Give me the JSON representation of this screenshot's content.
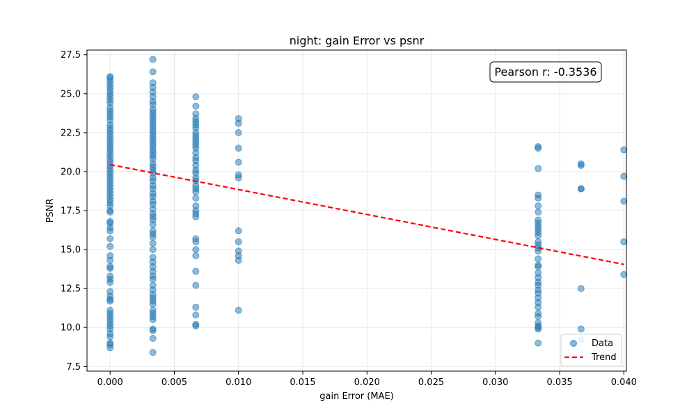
{
  "chart_data": {
    "type": "scatter",
    "title": "night: gain Error vs psnr",
    "xlabel": "gain Error (MAE)",
    "ylabel": "PSNR",
    "xlim": [
      -0.0018,
      0.0402
    ],
    "ylim": [
      7.2,
      27.8
    ],
    "x_ticks": [
      "0.000",
      "0.005",
      "0.010",
      "0.015",
      "0.020",
      "0.025",
      "0.030",
      "0.035",
      "0.040"
    ],
    "y_ticks": [
      "7.5",
      "10.0",
      "12.5",
      "15.0",
      "17.5",
      "20.0",
      "22.5",
      "25.0",
      "27.5"
    ],
    "grid": true,
    "legend_position": "lower-right",
    "annotation": "Pearson r: -0.3536",
    "colors": {
      "data": "#1f77b4",
      "trend": "#ff0000"
    },
    "series": [
      {
        "name": "Data",
        "kind": "scatter",
        "groups": [
          {
            "x": 0.0,
            "y": [
              26.1,
              26.0,
              25.8,
              25.6,
              25.4,
              25.2,
              25.0,
              24.8,
              24.6,
              24.4,
              24.1,
              23.9,
              23.7,
              23.5,
              23.3,
              23.0,
              22.8,
              22.6,
              22.4,
              22.2,
              22.0,
              21.8,
              21.6,
              21.4,
              21.2,
              21.0,
              20.8,
              20.6,
              20.4,
              20.2,
              20.0,
              19.8,
              19.6,
              19.4,
              19.2,
              19.0,
              18.8,
              18.6,
              18.4,
              18.2,
              18.0,
              17.8,
              17.5,
              17.4,
              16.8,
              16.7,
              16.4,
              16.2,
              15.7,
              15.2,
              14.6,
              14.3,
              13.9,
              13.8,
              13.3,
              13.1,
              12.9,
              12.3,
              12.0,
              11.8,
              11.7,
              11.1,
              10.9,
              10.7,
              10.5,
              10.3,
              10.1,
              9.9,
              9.6,
              9.4,
              9.0,
              8.9,
              8.7
            ]
          },
          {
            "x": 0.00333,
            "y": [
              27.2,
              26.4,
              25.7,
              25.4,
              25.1,
              24.8,
              24.5,
              24.3,
              24.0,
              23.8,
              23.6,
              23.4,
              23.2,
              23.0,
              22.8,
              22.6,
              22.4,
              22.2,
              22.0,
              21.8,
              21.6,
              21.4,
              21.2,
              21.0,
              20.8,
              20.5,
              20.3,
              20.1,
              19.9,
              19.6,
              19.4,
              19.1,
              18.9,
              18.6,
              18.4,
              18.1,
              17.9,
              17.6,
              17.3,
              17.1,
              16.9,
              16.6,
              16.2,
              16.0,
              15.8,
              15.4,
              15.0,
              14.5,
              14.2,
              13.9,
              13.6,
              13.3,
              13.1,
              12.7,
              12.4,
              12.1,
              11.9,
              11.7,
              11.5,
              11.1,
              10.9,
              10.7,
              10.5,
              9.9,
              9.8,
              9.3,
              8.4
            ]
          },
          {
            "x": 0.00667,
            "y": [
              24.8,
              24.2,
              23.7,
              23.4,
              23.2,
              23.0,
              22.8,
              22.5,
              22.3,
              22.1,
              21.9,
              21.7,
              21.5,
              21.2,
              20.9,
              20.7,
              20.4,
              20.1,
              19.9,
              19.6,
              19.4,
              19.1,
              18.9,
              18.7,
              18.3,
              17.8,
              17.5,
              17.3,
              17.1,
              15.7,
              15.5,
              15.0,
              14.6,
              13.6,
              12.7,
              11.3,
              10.8,
              10.2,
              10.1
            ]
          },
          {
            "x": 0.01,
            "y": [
              23.4,
              23.1,
              22.5,
              21.5,
              20.6,
              19.8,
              19.6,
              16.2,
              15.5,
              14.9,
              14.6,
              14.3,
              11.1
            ]
          },
          {
            "x": 0.03333,
            "y": [
              21.6,
              21.5,
              20.2,
              18.5,
              18.3,
              17.8,
              17.4,
              16.9,
              16.7,
              16.5,
              16.3,
              16.1,
              15.9,
              15.5,
              15.3,
              15.1,
              14.9,
              14.4,
              14.0,
              13.9,
              13.5,
              13.2,
              12.9,
              12.7,
              12.4,
              12.2,
              11.9,
              11.6,
              11.3,
              10.9,
              10.7,
              10.3,
              10.1,
              10.0,
              9.9,
              9.0
            ]
          },
          {
            "x": 0.03667,
            "y": [
              20.5,
              20.4,
              18.9,
              18.9,
              12.5,
              9.9,
              9.2
            ]
          },
          {
            "x": 0.04,
            "y": [
              21.4,
              19.7,
              18.1,
              15.5,
              13.4
            ]
          }
        ]
      },
      {
        "name": "Trend",
        "kind": "line",
        "style": "dashed",
        "x": [
          0.0,
          0.04
        ],
        "y": [
          20.45,
          14.05
        ]
      }
    ]
  }
}
